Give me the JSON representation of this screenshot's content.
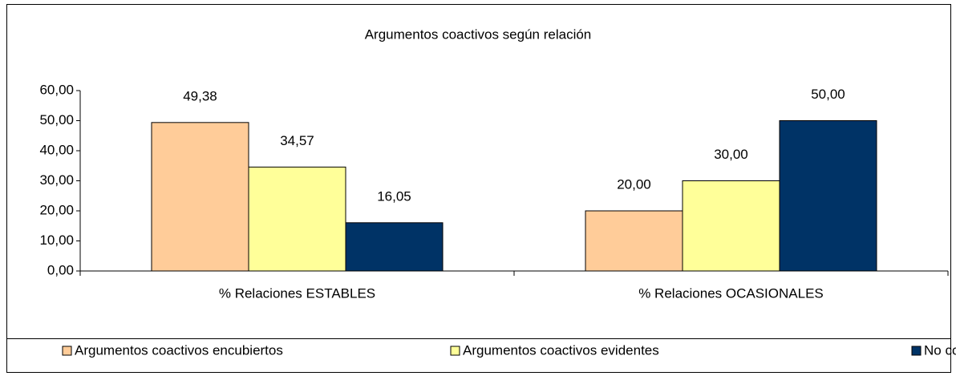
{
  "chart_data": {
    "type": "bar",
    "title": "Argumentos coactivos según relación",
    "categories": [
      "% Relaciones ESTABLES",
      "% Relaciones OCASIONALES"
    ],
    "series": [
      {
        "name": "Argumentos coactivos encubiertos",
        "color": "#FFCC99",
        "values": [
          49.38,
          20.0
        ],
        "value_labels": [
          "49,38",
          "20,00"
        ]
      },
      {
        "name": "Argumentos coactivos evidentes",
        "color": "#FFFF99",
        "values": [
          34.57,
          30.0
        ],
        "value_labels": [
          "34,57",
          "30,00"
        ]
      },
      {
        "name": "No contesta",
        "color": "#003366",
        "values": [
          16.05,
          50.0
        ],
        "value_labels": [
          "16,05",
          "50,00"
        ]
      }
    ],
    "ylim": [
      0,
      60
    ],
    "yticks": [
      {
        "value": 0,
        "label": "0,00"
      },
      {
        "value": 10,
        "label": "10,00"
      },
      {
        "value": 20,
        "label": "20,00"
      },
      {
        "value": 30,
        "label": "30,00"
      },
      {
        "value": 40,
        "label": "40,00"
      },
      {
        "value": 50,
        "label": "50,00"
      },
      {
        "value": 60,
        "label": "60,00"
      }
    ],
    "grid": false,
    "legend": "bottom"
  }
}
